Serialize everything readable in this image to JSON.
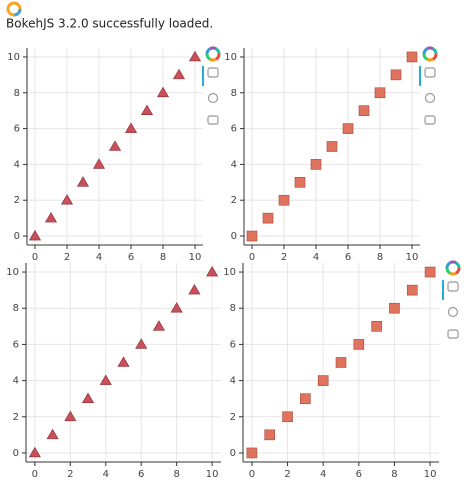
{
  "header": {
    "text": "BokehJS 3.2.0 successfully loaded."
  },
  "chart_data": [
    {
      "type": "scatter",
      "x": [
        0,
        1,
        2,
        3,
        4,
        5,
        6,
        7,
        8,
        9,
        10
      ],
      "series": [
        {
          "color": "#c8505a",
          "marker": "triangle",
          "values": [
            0,
            1,
            2,
            3,
            4,
            5,
            6,
            7,
            8,
            9,
            10
          ]
        }
      ],
      "xlim": [
        -0.5,
        10.5
      ],
      "ylim": [
        -0.5,
        10.5
      ],
      "xticks": [
        0,
        2,
        4,
        6,
        8,
        10
      ],
      "yticks": [
        0,
        2,
        4,
        6,
        8,
        10
      ],
      "grid": true
    },
    {
      "type": "scatter",
      "x": [
        0,
        1,
        2,
        3,
        4,
        5,
        6,
        7,
        8,
        9,
        10
      ],
      "series": [
        {
          "color": "#e0735e",
          "marker": "square",
          "values": [
            0,
            1,
            2,
            3,
            4,
            5,
            6,
            7,
            8,
            9,
            10
          ]
        }
      ],
      "xlim": [
        -0.5,
        10.5
      ],
      "ylim": [
        -0.5,
        10.5
      ],
      "xticks": [
        0,
        2,
        4,
        6,
        8,
        10
      ],
      "yticks": [
        0,
        2,
        4,
        6,
        8,
        10
      ],
      "grid": true
    },
    {
      "type": "scatter",
      "x": [
        0,
        1,
        2,
        3,
        4,
        5,
        6,
        7,
        8,
        9,
        10
      ],
      "series": [
        {
          "color": "#c8505a",
          "marker": "triangle",
          "values": [
            0,
            1,
            2,
            3,
            4,
            5,
            6,
            7,
            8,
            9,
            10
          ]
        }
      ],
      "xlim": [
        -0.5,
        10.5
      ],
      "ylim": [
        -0.5,
        10.5
      ],
      "xticks": [
        0,
        2,
        4,
        6,
        8,
        10
      ],
      "yticks": [
        0,
        2,
        4,
        6,
        8,
        10
      ],
      "grid": true
    },
    {
      "type": "scatter",
      "x": [
        0,
        1,
        2,
        3,
        4,
        5,
        6,
        7,
        8,
        9,
        10
      ],
      "series": [
        {
          "color": "#e0735e",
          "marker": "square",
          "values": [
            0,
            1,
            2,
            3,
            4,
            5,
            6,
            7,
            8,
            9,
            10
          ]
        }
      ],
      "xlim": [
        -0.5,
        10.5
      ],
      "ylim": [
        -0.5,
        10.5
      ],
      "xticks": [
        0,
        2,
        4,
        6,
        8,
        10
      ],
      "yticks": [
        0,
        2,
        4,
        6,
        8,
        10
      ],
      "grid": true
    }
  ]
}
